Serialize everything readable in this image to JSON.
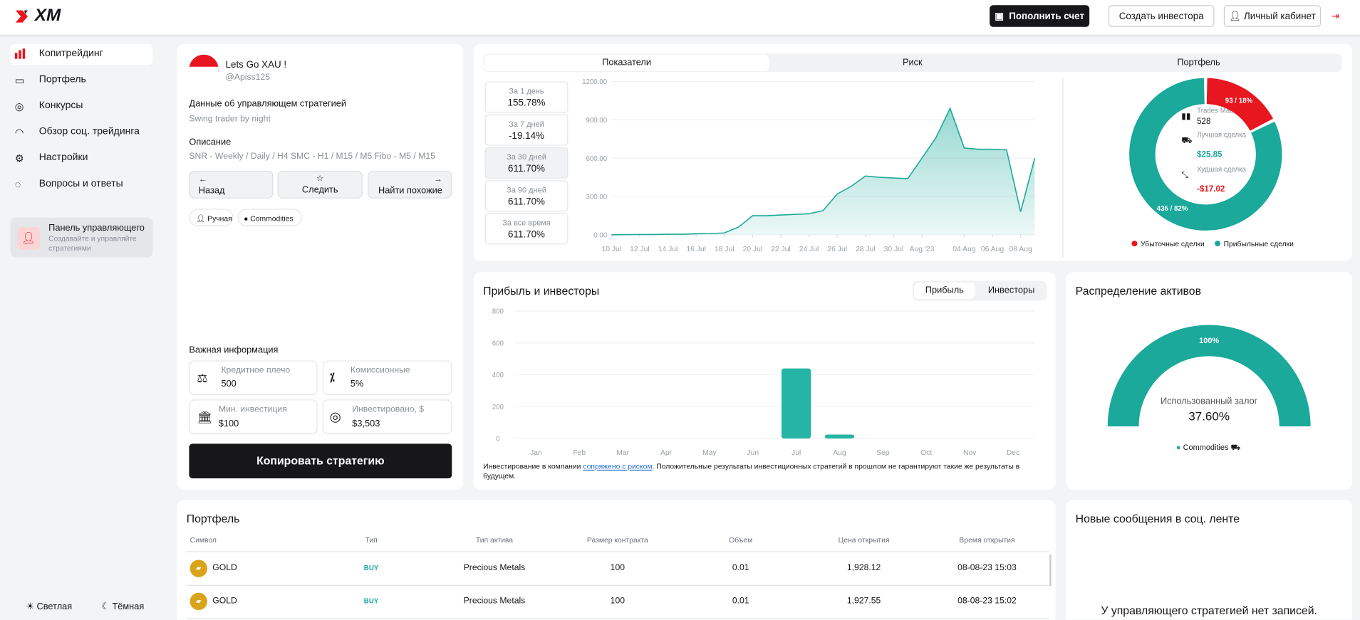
{
  "header": {
    "logo": "XM",
    "buttons": [
      "Пополнить счет",
      "Создать инвестора",
      "Личный кабинет"
    ]
  },
  "sidebar": {
    "items": [
      "Копитрейдинг",
      "Портфель",
      "Конкурсы",
      "Обзор соц. трейдинга",
      "Настройки",
      "Вопросы и ответы"
    ],
    "manager_panel": {
      "title": "Панель управляющего",
      "text": "Создавайте и управляйте стратегиями"
    },
    "themes": [
      "Светлая",
      "Тёмная"
    ]
  },
  "profile": {
    "name": "Lets Go XAU !",
    "handle": "@Apiss125",
    "manager_label": "Данные об управляющем стратегией",
    "manager_text": "Swing trader by night",
    "description_label": "Описание",
    "description": "SNR - Weekly / Daily / H4 SMC - H1 / M15 / M5 Fibo - M5 / M15",
    "actions": [
      "Назад",
      "Следить",
      "Найти похожие"
    ],
    "tags": [
      "Ручная",
      "Commodities"
    ],
    "info_title": "Важная информация",
    "info": [
      {
        "label": "Кредитное плечо",
        "value": "500"
      },
      {
        "label": "Комиссионные",
        "value": "5%"
      },
      {
        "label": "Мин. инвестиция",
        "value": "$100"
      },
      {
        "label": "Инвестировано, $",
        "value": "$3,503"
      }
    ],
    "copy_button": "Копировать стратегию"
  },
  "performance": {
    "tabs": [
      "Показатели",
      "Риск",
      "Портфель"
    ],
    "periods": [
      {
        "label": "За 1 день",
        "value": "155.78%"
      },
      {
        "label": "За 7 дней",
        "value": "-19.14%"
      },
      {
        "label": "За 30 дней",
        "value": "611.70%"
      },
      {
        "label": "За 90 дней",
        "value": "611.70%"
      },
      {
        "label": "За все время",
        "value": "611.70%"
      }
    ],
    "chart": {
      "type": "line",
      "x": [
        "2023-07-10",
        "2023-07-11",
        "2023-07-12",
        "2023-07-13",
        "2023-07-14",
        "2023-07-15",
        "2023-07-16",
        "2023-07-17",
        "2023-07-18",
        "2023-07-19",
        "2023-07-20",
        "2023-07-21",
        "2023-07-22",
        "2023-07-23",
        "2023-07-24",
        "2023-07-25",
        "2023-07-26",
        "2023-07-27",
        "2023-07-28",
        "2023-07-29",
        "2023-07-30",
        "2023-07-31",
        "2023-08-01",
        "2023-08-02",
        "2023-08-03",
        "2023-08-04",
        "2023-08-05",
        "2023-08-06",
        "2023-08-07",
        "2023-08-08",
        "2023-08-09"
      ],
      "values": [
        0,
        2,
        3,
        3,
        5,
        5,
        8,
        10,
        15,
        60,
        150,
        150,
        155,
        160,
        165,
        190,
        320,
        380,
        460,
        450,
        445,
        440,
        600,
        760,
        990,
        680,
        670,
        670,
        665,
        180,
        600
      ],
      "color": "#1aa99a",
      "xlim": [
        "2023-07-10",
        "2023-08-09"
      ],
      "xticks": [
        {
          "value": "2023-07-10",
          "label": "10 Jul"
        },
        {
          "value": "2023-07-12",
          "label": "12 Jul"
        },
        {
          "value": "2023-07-14",
          "label": "14 Jul"
        },
        {
          "value": "2023-07-16",
          "label": "16 Jul"
        },
        {
          "value": "2023-07-18",
          "label": "18 Jul"
        },
        {
          "value": "2023-07-20",
          "label": "20 Jul"
        },
        {
          "value": "2023-07-22",
          "label": "22 Jul"
        },
        {
          "value": "2023-07-24",
          "label": "24 Jul"
        },
        {
          "value": "2023-07-26",
          "label": "26 Jul"
        },
        {
          "value": "2023-07-28",
          "label": "28 Jul"
        },
        {
          "value": "2023-07-30",
          "label": "30 Jul"
        },
        {
          "value": "2023-08-01",
          "label": "Aug '23"
        },
        {
          "value": "2023-08-04",
          "label": "04 Aug"
        },
        {
          "value": "2023-08-06",
          "label": "06 Aug"
        },
        {
          "value": "2023-08-08",
          "label": "08 Aug"
        }
      ],
      "ylim": [
        0,
        1200
      ],
      "yticks": [
        {
          "value": 0,
          "label": "0.00"
        },
        {
          "value": 300,
          "label": "300.00"
        },
        {
          "value": 600,
          "label": "600.00"
        },
        {
          "value": 900,
          "label": "900.00"
        },
        {
          "value": 1200,
          "label": "1200.00"
        }
      ]
    },
    "trades": {
      "type": "donut",
      "categories": [
        "Убыточные сделки",
        "Прибыльные сделки"
      ],
      "values": [
        93,
        435
      ],
      "value_labels": [
        "93 / 18%",
        "435 / 82%"
      ],
      "colors": [
        "#e8161f",
        "#1aa99a"
      ],
      "stats": [
        {
          "label": "Trades Made",
          "value": "528"
        },
        {
          "label": "Лучшая сделка",
          "value": "$25.85"
        },
        {
          "label": "Худшая сделка",
          "value": "-$17.02"
        }
      ]
    }
  },
  "profit": {
    "type": "bar",
    "title": "Прибыль и инвесторы",
    "toggles": [
      "Прибыль",
      "Инвесторы"
    ],
    "categories": [
      "Jan",
      "Feb",
      "Mar",
      "Apr",
      "May",
      "Jun",
      "Jul",
      "Aug",
      "Sep",
      "Oct",
      "Nov",
      "Dec"
    ],
    "values": [
      0,
      0,
      0,
      0,
      0,
      0,
      440,
      25,
      0,
      0,
      0,
      0
    ],
    "color": "#26b5a4",
    "ylim": [
      0,
      800
    ],
    "yticks": [
      0,
      200,
      400,
      600,
      800
    ],
    "disclaimer": {
      "before": "Инвестирование в компании ",
      "link": "сопряжено с риском",
      "after": ". Положительные результаты инвестиционных стратегий в прошлом не гарантируют такие же результаты в будущем."
    }
  },
  "assets": {
    "title": "Распределение активов",
    "gauge": {
      "type": "gauge",
      "values": [
        100
      ],
      "value_labels": [
        "100%"
      ],
      "ylim": [
        0,
        100
      ],
      "categories": [
        "Commodities"
      ],
      "color": "#1aa99a",
      "label": "Использованный залог",
      "center_value": "37.60%"
    }
  },
  "portfolio": {
    "title": "Портфель",
    "columns": [
      "Символ",
      "Тип",
      "Тип актива",
      "Размер контракта",
      "Объем",
      "Цена открытия",
      "Время открытия"
    ],
    "rows": [
      [
        "GOLD",
        "BUY",
        "Precious Metals",
        "100",
        "0.01",
        "1,928.12",
        "08-08-23 15:03"
      ],
      [
        "GOLD",
        "BUY",
        "Precious Metals",
        "100",
        "0.01",
        "1,927.55",
        "08-08-23 15:02"
      ]
    ]
  },
  "feed": {
    "title": "Новые сообщения в соц. ленте",
    "empty": "У управляющего стратегией нет записей."
  }
}
